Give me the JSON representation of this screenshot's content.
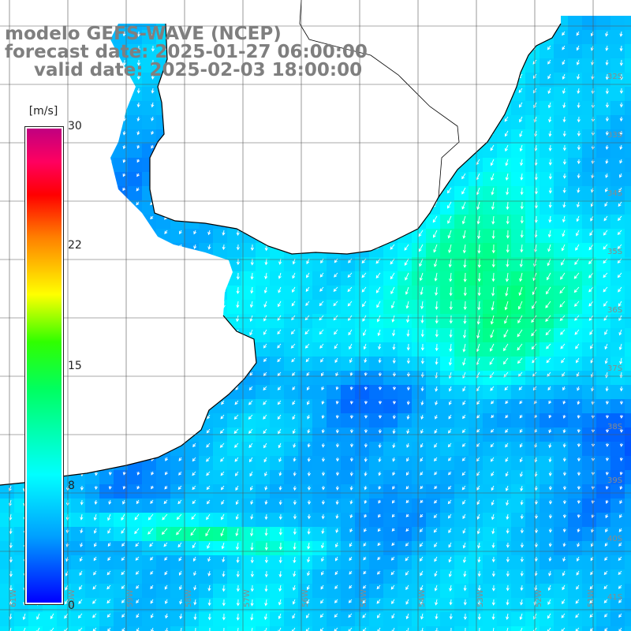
{
  "header": {
    "line1": "modelo GEFS-WAVE (NCEP)",
    "line2": "forecast date: 2025-01-27 06:00:00",
    "line3": "valid date: 2025-02-03 18:00:00"
  },
  "colorbar": {
    "unit": "[m/s]",
    "ticks": [
      "30",
      "22",
      "15",
      "8",
      "0"
    ],
    "colors": [
      "#0000ff",
      "#00a0ff",
      "#00ffff",
      "#00ff60",
      "#30ff00",
      "#ffff00",
      "#ff8000",
      "#ff0000",
      "#c00080"
    ]
  },
  "grid": {
    "lat_labels": [
      "32S",
      "33S",
      "34S",
      "35S",
      "36S",
      "37S",
      "38S",
      "39S",
      "40S",
      "41S"
    ],
    "lon_labels": [
      "61W",
      "60W",
      "59W",
      "58W",
      "57W",
      "56W",
      "55W",
      "54W",
      "53W",
      "52W",
      "51W"
    ]
  },
  "colors": {
    "land": "#ffffff",
    "coast": "#000000",
    "grid": "#555555",
    "label": "#8a8a8a",
    "arrow": "#ffffff"
  }
}
